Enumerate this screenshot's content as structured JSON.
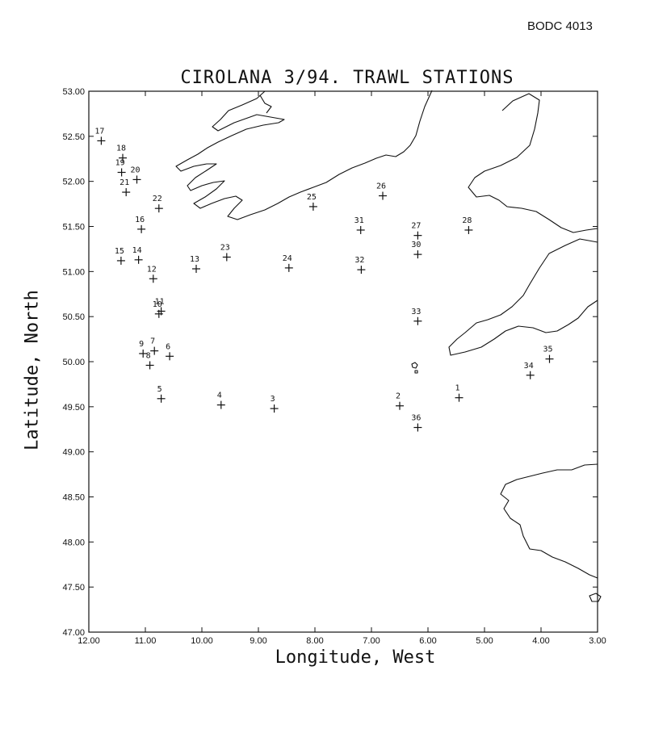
{
  "header": {
    "reference": "BODC 4013"
  },
  "chart_data": {
    "type": "scatter",
    "title": "CIROLANA 3/94. TRAWL STATIONS",
    "xlabel": "Longitude, West",
    "ylabel": "Latitude, North",
    "xlim": [
      12.0,
      3.0
    ],
    "ylim": [
      47.0,
      53.0
    ],
    "x_ticks": [
      "12.00",
      "11.00",
      "10.00",
      "9.00",
      "8.00",
      "7.00",
      "6.00",
      "5.00",
      "4.00",
      "3.00"
    ],
    "y_ticks": [
      "53.00",
      "52.50",
      "52.00",
      "51.50",
      "51.00",
      "50.50",
      "50.00",
      "49.50",
      "49.00",
      "48.50",
      "48.00",
      "47.50",
      "47.00"
    ],
    "grid": false,
    "marker": "+",
    "stations": [
      {
        "label": "1",
        "lon": 5.45,
        "lat": 49.6
      },
      {
        "label": "2",
        "lon": 6.5,
        "lat": 49.51
      },
      {
        "label": "3",
        "lon": 8.72,
        "lat": 49.48
      },
      {
        "label": "4",
        "lon": 9.66,
        "lat": 49.52
      },
      {
        "label": "5",
        "lon": 10.72,
        "lat": 49.59
      },
      {
        "label": "6",
        "lon": 10.57,
        "lat": 50.06
      },
      {
        "label": "7",
        "lon": 10.84,
        "lat": 50.12
      },
      {
        "label": "8",
        "lon": 10.92,
        "lat": 49.96
      },
      {
        "label": "9",
        "lon": 11.04,
        "lat": 50.09
      },
      {
        "label": "10",
        "lon": 10.76,
        "lat": 50.53
      },
      {
        "label": "11",
        "lon": 10.72,
        "lat": 50.56
      },
      {
        "label": "12",
        "lon": 10.86,
        "lat": 50.92
      },
      {
        "label": "13",
        "lon": 10.1,
        "lat": 51.03
      },
      {
        "label": "14",
        "lon": 11.12,
        "lat": 51.13
      },
      {
        "label": "15",
        "lon": 11.43,
        "lat": 51.12
      },
      {
        "label": "16",
        "lon": 11.07,
        "lat": 51.47
      },
      {
        "label": "17",
        "lon": 11.78,
        "lat": 52.45
      },
      {
        "label": "18",
        "lon": 11.4,
        "lat": 52.26
      },
      {
        "label": "19",
        "lon": 11.42,
        "lat": 52.1
      },
      {
        "label": "20",
        "lon": 11.15,
        "lat": 52.02
      },
      {
        "label": "21",
        "lon": 11.34,
        "lat": 51.88
      },
      {
        "label": "22",
        "lon": 10.76,
        "lat": 51.7
      },
      {
        "label": "23",
        "lon": 9.56,
        "lat": 51.16
      },
      {
        "label": "24",
        "lon": 8.46,
        "lat": 51.04
      },
      {
        "label": "25",
        "lon": 8.03,
        "lat": 51.72
      },
      {
        "label": "26",
        "lon": 6.8,
        "lat": 51.84
      },
      {
        "label": "27",
        "lon": 6.18,
        "lat": 51.4
      },
      {
        "label": "28",
        "lon": 5.28,
        "lat": 51.46
      },
      {
        "label": "30",
        "lon": 6.18,
        "lat": 51.19
      },
      {
        "label": "31",
        "lon": 7.19,
        "lat": 51.46
      },
      {
        "label": "32",
        "lon": 7.18,
        "lat": 51.02
      },
      {
        "label": "33",
        "lon": 6.18,
        "lat": 50.45
      },
      {
        "label": "34",
        "lon": 4.19,
        "lat": 49.85
      },
      {
        "label": "35",
        "lon": 3.85,
        "lat": 50.03
      },
      {
        "label": "36",
        "lon": 6.18,
        "lat": 49.27
      }
    ]
  }
}
